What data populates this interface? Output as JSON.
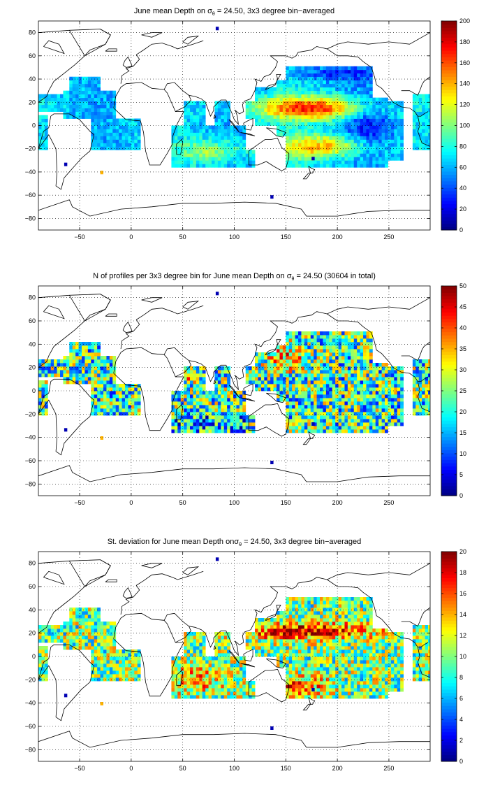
{
  "chart_data": [
    {
      "type": "heatmap",
      "title_parts": {
        "pre": "June mean Depth on ",
        "sym": "σ",
        "sub": "θ",
        "post": " = 24.50, 3x3 degree bin−averaged"
      },
      "xlabel": "",
      "ylabel": "",
      "xlim": [
        -90,
        290
      ],
      "ylim": [
        -90,
        90
      ],
      "xticks": [
        -50,
        0,
        50,
        100,
        150,
        200,
        250
      ],
      "yticks": [
        -80,
        -60,
        -40,
        -20,
        0,
        20,
        40,
        60,
        80
      ],
      "grid": "dotted",
      "colormap": "jet",
      "colorbar": {
        "min": 0,
        "max": 200,
        "ticks": [
          0,
          20,
          40,
          60,
          80,
          100,
          120,
          140,
          160,
          180,
          200
        ]
      },
      "field": "depth"
    },
    {
      "type": "heatmap",
      "title_parts": {
        "pre": "N of profiles per 3x3 degree bin for June mean Depth on ",
        "sym": "σ",
        "sub": "θ",
        "post": " = 24.50 (30604 in total)"
      },
      "xlabel": "",
      "ylabel": "",
      "xlim": [
        -90,
        290
      ],
      "ylim": [
        -90,
        90
      ],
      "xticks": [
        -50,
        0,
        50,
        100,
        150,
        200,
        250
      ],
      "yticks": [
        -80,
        -60,
        -40,
        -20,
        0,
        20,
        40,
        60,
        80
      ],
      "grid": "dotted",
      "colormap": "jet",
      "colorbar": {
        "min": 0,
        "max": 50,
        "ticks": [
          0,
          5,
          10,
          15,
          20,
          25,
          30,
          35,
          40,
          45,
          50
        ]
      },
      "field": "count"
    },
    {
      "type": "heatmap",
      "title_parts": {
        "pre": "St. deviation for June mean Depth on",
        "sym": "σ",
        "sub": "θ",
        "post": " = 24.50, 3x3 degree bin−averaged"
      },
      "xlabel": "",
      "ylabel": "",
      "xlim": [
        -90,
        290
      ],
      "ylim": [
        -90,
        90
      ],
      "xticks": [
        -50,
        0,
        50,
        100,
        150,
        200,
        250
      ],
      "yticks": [
        -80,
        -60,
        -40,
        -20,
        0,
        20,
        40,
        60,
        80
      ],
      "grid": "dotted",
      "colormap": "jet",
      "colorbar": {
        "min": 0,
        "max": 20,
        "ticks": [
          0,
          2,
          4,
          6,
          8,
          10,
          12,
          14,
          16,
          18,
          20
        ]
      },
      "field": "std"
    }
  ]
}
